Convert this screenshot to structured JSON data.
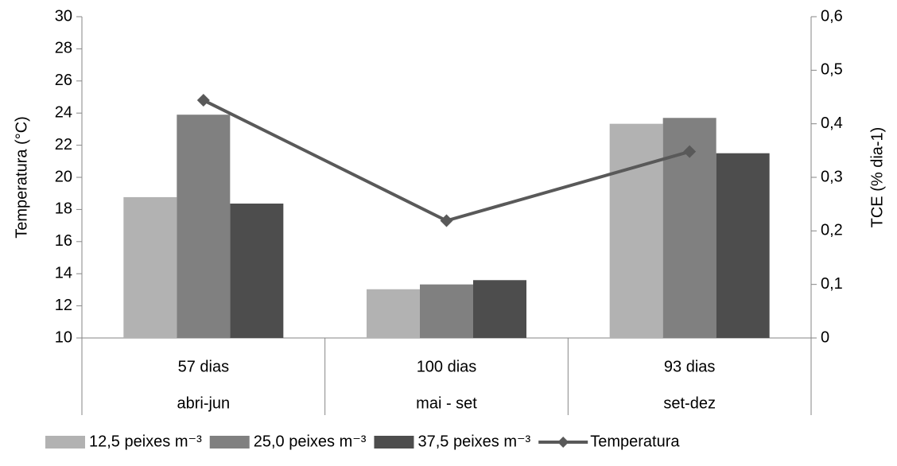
{
  "chart_data": {
    "type": "bar-line",
    "categories": [
      "57 dias",
      "100 dias",
      "93 dias"
    ],
    "subcategories": [
      "abri-jun",
      "mai - set",
      "set-dez"
    ],
    "y_label": "Temperatura (°C)",
    "y2_label": "TCE (% dia-1)",
    "ylim": [
      10,
      30
    ],
    "yticks": [
      10,
      12,
      14,
      16,
      18,
      20,
      22,
      24,
      26,
      28,
      30
    ],
    "y2lim": [
      0,
      0.6
    ],
    "y2ticks": [
      0,
      {
        "value": 0.1,
        "label": "0,1"
      },
      {
        "value": 0.2,
        "label": "0,2"
      },
      {
        "value": 0.3,
        "label": "0,3"
      },
      {
        "value": 0.4,
        "label": "0,4"
      },
      {
        "value": 0.5,
        "label": "0,5"
      },
      {
        "value": 0.6,
        "label": "0,6"
      }
    ],
    "series": [
      {
        "name": "12,5 peixes m⁻³",
        "type": "bar",
        "axis": "y2",
        "color": "#b2b2b2",
        "values": [
          0.263,
          0.091,
          0.4
        ]
      },
      {
        "name": "25,0 peixes m⁻³",
        "type": "bar",
        "axis": "y2",
        "color": "#808080",
        "values": [
          0.417,
          0.1,
          0.411
        ]
      },
      {
        "name": "37,5 peixes m⁻³",
        "type": "bar",
        "axis": "y2",
        "color": "#4d4d4d",
        "values": [
          0.251,
          0.108,
          0.345
        ]
      },
      {
        "name": "Temperatura",
        "type": "line",
        "color": "#595959",
        "values": [
          24.8,
          17.3,
          21.6
        ]
      }
    ],
    "legend": "bottom"
  }
}
